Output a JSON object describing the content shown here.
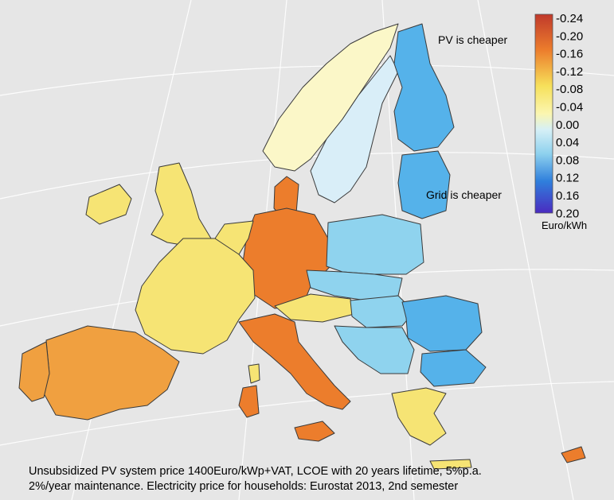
{
  "map": {
    "annotations": {
      "pv_cheaper": "PV is cheaper",
      "grid_cheaper": "Grid is cheaper"
    },
    "legend": {
      "ticks": [
        "-0.24",
        "-0.20",
        "-0.16",
        "-0.12",
        "-0.08",
        "-0.04",
        "0.00",
        "0.04",
        "0.08",
        "0.12",
        "0.16",
        "0.20"
      ],
      "unit": "Euro/kWh",
      "colors": [
        "#c0392b",
        "#e4572e",
        "#ef8a2e",
        "#f4b23f",
        "#f6e05a",
        "#fbf6b0",
        "#d6f0f6",
        "#8fd2ee",
        "#4fb3ea",
        "#2f7fdc",
        "#2b4fd0",
        "#4a2bc0"
      ]
    },
    "caption_lines": [
      "Unsubsidized PV system price 1400Euro/kWp+VAT, LCOE with 20 years lifetime, 5%p.a.",
      "2%/year maintenance. Electricity price for households: Eurostat 2013, 2nd semester"
    ],
    "region_colors": {
      "strong_orange": "#ec7d2c",
      "orange": "#f0a040",
      "light_yellow": "#f6e474",
      "pale": "#fbf7c8",
      "light_blue": "#8fd3ee",
      "blue": "#55b2ea"
    }
  }
}
